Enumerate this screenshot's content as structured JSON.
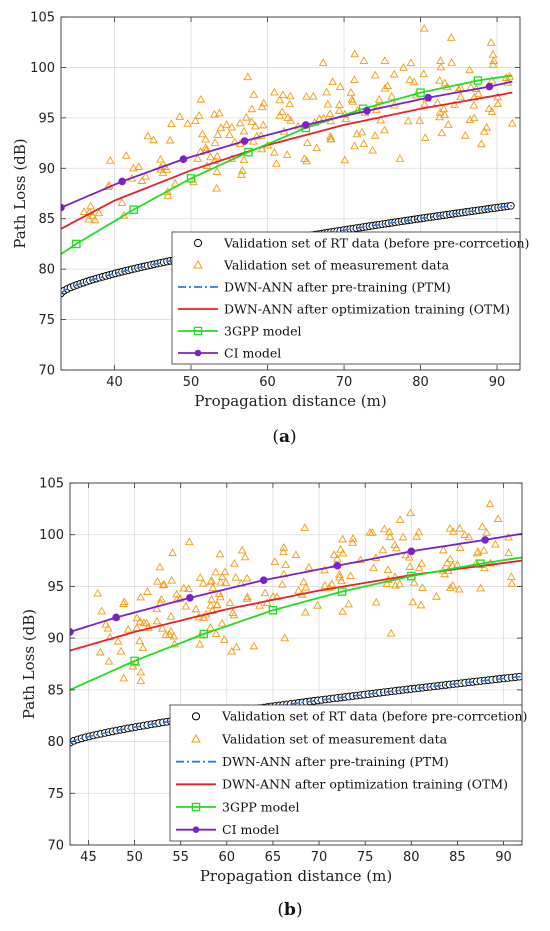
{
  "chart_data": [
    {
      "type": "line",
      "caption": "(a)",
      "caption_letter": "a",
      "xlabel": "Propagation distance (m)",
      "ylabel": "Path Loss (dB)",
      "xlim": [
        33,
        93
      ],
      "ylim": [
        70,
        105
      ],
      "xticks": [
        40,
        50,
        60,
        70,
        80,
        90
      ],
      "yticks": [
        70,
        75,
        80,
        85,
        90,
        95,
        100,
        105
      ],
      "grid": true,
      "legend_position": "lower-right",
      "rt_data": {
        "name": "Validation set of RT data (before pre-corrcetion)",
        "x_range": [
          33,
          92
        ],
        "y_start": 77.6,
        "y_end": 86.3,
        "curve": 0.7,
        "marker": "circle",
        "color": "#000000"
      },
      "measurement": {
        "name": "Validation set of measurement data",
        "marker": "triangle",
        "color": "#f39c12"
      },
      "series": [
        {
          "name": "DWN-ANN after pre-training (PTM)",
          "style": "dashdot",
          "color": "#2e7be0",
          "x": [
            33,
            92
          ],
          "y": [
            77.6,
            86.3
          ]
        },
        {
          "name": "DWN-ANN after optimization training (OTM)",
          "style": "solid",
          "color": "#e8202a",
          "x": [
            33,
            40,
            50,
            60,
            70,
            80,
            92
          ],
          "y": [
            84.0,
            86.8,
            89.8,
            92.3,
            94.3,
            95.9,
            97.5
          ]
        },
        {
          "name": "3GPP model",
          "style": "solid",
          "marker": "square",
          "color": "#22dd22",
          "x": [
            33,
            35,
            42.5,
            50,
            57.5,
            65,
            72.5,
            80,
            87.5,
            92
          ],
          "y": [
            81.5,
            82.5,
            85.9,
            89.0,
            91.6,
            94.0,
            95.9,
            97.5,
            98.7,
            99.2
          ]
        },
        {
          "name": "CI model",
          "style": "solid",
          "marker": "asterisk",
          "color": "#7a22c8",
          "x": [
            33,
            41,
            49,
            57,
            65,
            73,
            81,
            89,
            92
          ],
          "y": [
            86.1,
            88.7,
            90.9,
            92.7,
            94.3,
            95.7,
            97.0,
            98.1,
            98.6
          ]
        }
      ]
    },
    {
      "type": "line",
      "caption": "(b)",
      "caption_letter": "b",
      "xlabel": "Propagation distance (m)",
      "ylabel": "Path Loss (dB)",
      "xlim": [
        43,
        92
      ],
      "ylim": [
        70,
        105
      ],
      "xticks": [
        45,
        50,
        55,
        60,
        65,
        70,
        75,
        80,
        85,
        90
      ],
      "yticks": [
        70,
        75,
        80,
        85,
        90,
        95,
        100,
        105
      ],
      "grid": true,
      "legend_position": "lower-right",
      "rt_data": {
        "name": "Validation set of RT data (before pre-corrcetion)",
        "x_range": [
          43,
          92
        ],
        "y_start": 79.9,
        "y_end": 86.3,
        "curve": 0.75,
        "marker": "circle",
        "color": "#000000"
      },
      "measurement": {
        "name": "Validation set of measurement data",
        "marker": "triangle",
        "color": "#f39c12"
      },
      "series": [
        {
          "name": "DWN-ANN after pre-training (PTM)",
          "style": "dashdot",
          "color": "#2e7be0",
          "x": [
            43,
            92
          ],
          "y": [
            79.9,
            86.3
          ]
        },
        {
          "name": "DWN-ANN after optimization training (OTM)",
          "style": "solid",
          "color": "#e8202a",
          "x": [
            43,
            50,
            60,
            70,
            80,
            92
          ],
          "y": [
            88.8,
            90.6,
            92.8,
            94.6,
            96.1,
            97.5
          ]
        },
        {
          "name": "3GPP model",
          "style": "solid",
          "marker": "square",
          "color": "#22dd22",
          "x": [
            43,
            50,
            57.5,
            65,
            72.5,
            80,
            87.5,
            92
          ],
          "y": [
            85.0,
            87.8,
            90.4,
            92.7,
            94.5,
            96.0,
            97.2,
            97.8
          ]
        },
        {
          "name": "CI model",
          "style": "solid",
          "marker": "asterisk",
          "color": "#7a22c8",
          "x": [
            43,
            48,
            56,
            64,
            72,
            80,
            88,
            92
          ],
          "y": [
            90.6,
            92.0,
            93.9,
            95.6,
            97.0,
            98.4,
            99.5,
            100.1
          ]
        }
      ]
    }
  ]
}
